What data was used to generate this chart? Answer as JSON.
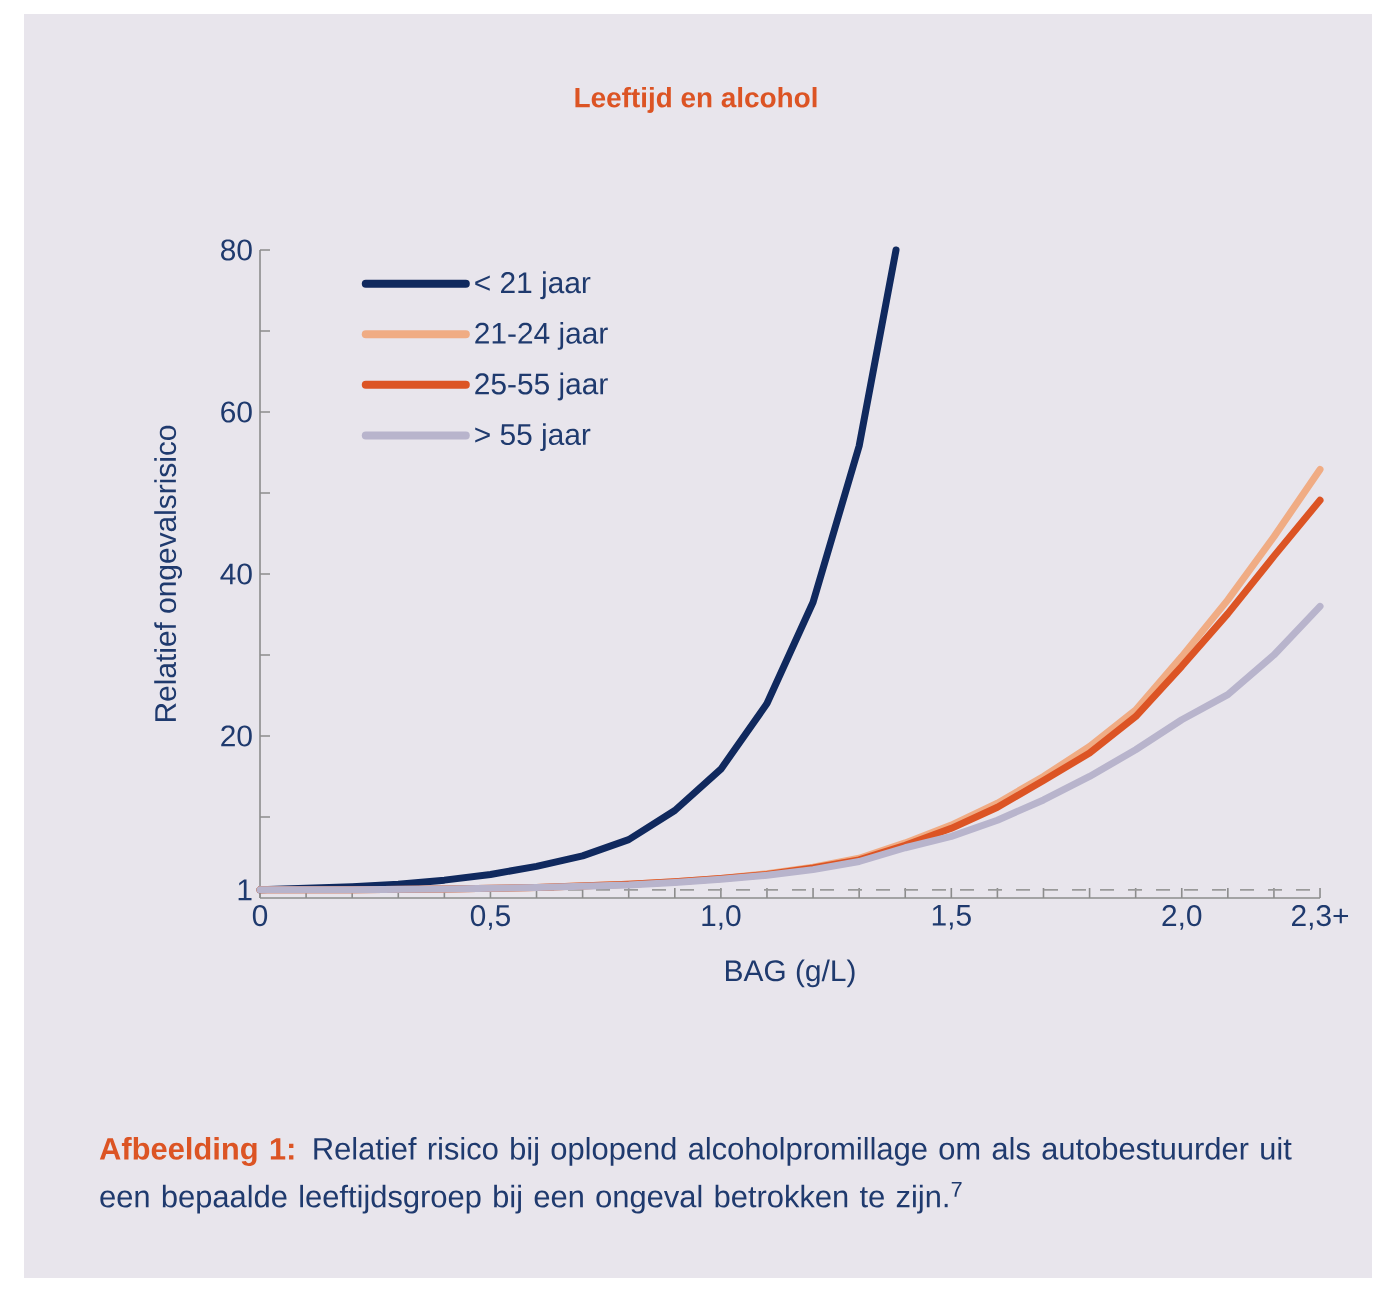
{
  "chart_data": {
    "type": "line",
    "title": "Leeftijd en alcohol",
    "xlabel": "BAG (g/L)",
    "ylabel": "Relatief ongevalsrisico",
    "x": [
      0,
      0.1,
      0.2,
      0.3,
      0.4,
      0.5,
      0.6,
      0.7,
      0.8,
      0.9,
      1.0,
      1.1,
      1.2,
      1.3,
      1.38
    ],
    "series": [
      {
        "name": "< 21 jaar",
        "color": "#10295e",
        "values": [
          1,
          1.2,
          1.4,
          1.7,
          2.2,
          2.9,
          3.9,
          5.2,
          7.2,
          10.8,
          15.9,
          24,
          36.5,
          55.8,
          80
        ]
      },
      {
        "name": "21-24 jaar",
        "color": "#f0ac84",
        "x": [
          0,
          0.2,
          0.4,
          0.6,
          0.8,
          0.9,
          1.0,
          1.1,
          1.2,
          1.3,
          1.4,
          1.5,
          1.6,
          1.7,
          1.8,
          1.9,
          2.0,
          2.1,
          2.2,
          2.3
        ],
        "values": [
          1,
          1.0,
          1.1,
          1.3,
          1.7,
          2.0,
          2.4,
          3.0,
          3.8,
          4.9,
          6.8,
          9.0,
          11.7,
          15.0,
          18.7,
          23.2,
          29.8,
          36.8,
          44.6,
          52.9
        ]
      },
      {
        "name": "25-55 jaar",
        "color": "#dc5424",
        "x": [
          0,
          0.2,
          0.4,
          0.6,
          0.8,
          0.9,
          1.0,
          1.1,
          1.2,
          1.3,
          1.4,
          1.5,
          1.6,
          1.7,
          1.8,
          1.9,
          2.0,
          2.1,
          2.2,
          2.3
        ],
        "values": [
          1,
          1.0,
          1.1,
          1.3,
          1.7,
          2.0,
          2.4,
          2.9,
          3.7,
          4.7,
          6.5,
          8.6,
          11.2,
          14.5,
          17.9,
          22.4,
          28.6,
          35.1,
          42.2,
          49.1
        ]
      },
      {
        "name": "> 55 jaar",
        "color": "#b8b4cc",
        "x": [
          0,
          0.2,
          0.4,
          0.6,
          0.8,
          0.9,
          1.0,
          1.1,
          1.2,
          1.3,
          1.4,
          1.5,
          1.6,
          1.7,
          1.8,
          1.9,
          2.0,
          2.1,
          2.2,
          2.3
        ],
        "values": [
          1,
          1.0,
          1.1,
          1.3,
          1.6,
          1.9,
          2.3,
          2.8,
          3.5,
          4.5,
          6.2,
          7.6,
          9.6,
          12.1,
          15.0,
          18.3,
          22.0,
          25.1,
          30.0,
          36.0
        ]
      }
    ],
    "xlim": [
      0,
      2.3
    ],
    "ylim": [
      0,
      80
    ],
    "xticks": [
      {
        "value": 0,
        "label": "0"
      },
      {
        "value": 0.1,
        "label": null
      },
      {
        "value": 0.2,
        "label": null
      },
      {
        "value": 0.3,
        "label": null
      },
      {
        "value": 0.4,
        "label": null
      },
      {
        "value": 0.5,
        "label": "0,5"
      },
      {
        "value": 0.6,
        "label": null
      },
      {
        "value": 0.7,
        "label": null
      },
      {
        "value": 0.8,
        "label": null
      },
      {
        "value": 0.9,
        "label": null
      },
      {
        "value": 1.0,
        "label": "1,0"
      },
      {
        "value": 1.1,
        "label": null
      },
      {
        "value": 1.2,
        "label": null
      },
      {
        "value": 1.3,
        "label": null
      },
      {
        "value": 1.4,
        "label": null
      },
      {
        "value": 1.5,
        "label": "1,5"
      },
      {
        "value": 1.6,
        "label": null
      },
      {
        "value": 1.7,
        "label": null
      },
      {
        "value": 1.8,
        "label": null
      },
      {
        "value": 1.9,
        "label": null
      },
      {
        "value": 2.0,
        "label": "2,0"
      },
      {
        "value": 2.1,
        "label": null
      },
      {
        "value": 2.2,
        "label": null
      },
      {
        "value": 2.3,
        "label": "2,3+"
      }
    ],
    "yticks": [
      1,
      {
        "value": 10,
        "label": null
      },
      20,
      {
        "value": 30,
        "label": null
      },
      40,
      {
        "value": 50,
        "label": null
      },
      60,
      {
        "value": 70,
        "label": null
      },
      80
    ],
    "ref_lines": [
      {
        "axis": "y",
        "value": 1,
        "color": "#9a9a9a",
        "line_style": "dashed"
      }
    ],
    "legend": "top left",
    "annotations": [
      "**Afbeelding 1:**",
      "Relatief risico bij oplopend alcoholpromillage om als autobestuurder uit een bepaalde leeftijdsgroep bij een ongeval betrokken te zijn.$^{7}$"
    ]
  }
}
